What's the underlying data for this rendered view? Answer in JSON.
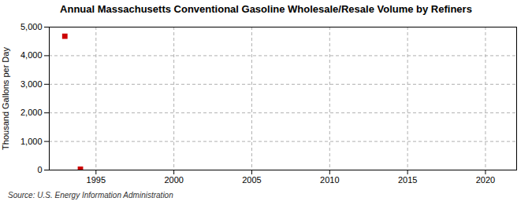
{
  "chart_data": {
    "type": "scatter",
    "title": "Annual Massachusetts Conventional Gasoline Wholesale/Resale Volume by Refiners",
    "ylabel": "Thousand Gallons per Day",
    "source": "Source: U.S. Energy Information Administration",
    "x": [
      1993,
      1994
    ],
    "values": [
      4680,
      30
    ],
    "color": "#cc0000",
    "marker": "square",
    "xlim": [
      1992,
      2022
    ],
    "xticks": [
      1995,
      2000,
      2005,
      2010,
      2015,
      2020
    ],
    "ylim": [
      0,
      5000
    ],
    "yticks": [
      0,
      {
        "value": 1000,
        "label": "1,000"
      },
      {
        "value": 2000,
        "label": "2,000"
      },
      {
        "value": 3000,
        "label": "3,000"
      },
      {
        "value": 4000,
        "label": "4,000"
      },
      {
        "value": 5000,
        "label": "5,000"
      }
    ],
    "grid": true
  }
}
